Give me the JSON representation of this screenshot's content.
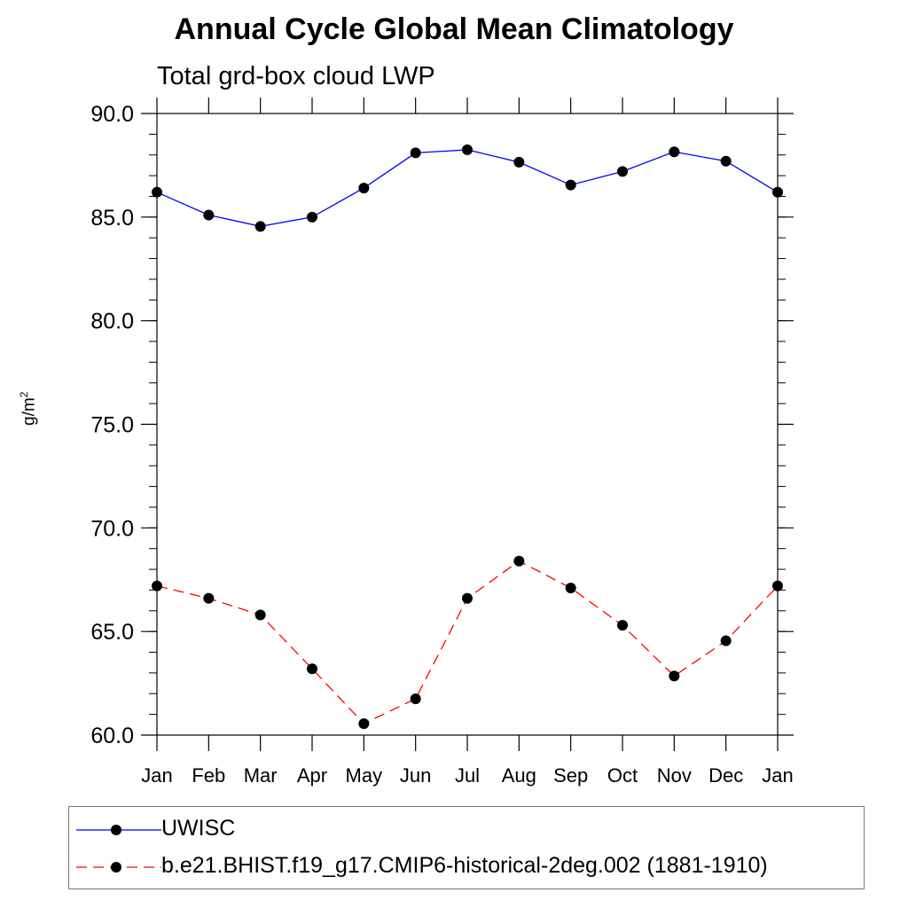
{
  "chart_data": {
    "type": "line",
    "title": "Annual Cycle Global Mean Climatology",
    "subtitle": "Total grd-box cloud LWP",
    "ylabel_base": "g/m",
    "ylabel_sup": "2",
    "categories": [
      "Jan",
      "Feb",
      "Mar",
      "Apr",
      "May",
      "Jun",
      "Jul",
      "Aug",
      "Sep",
      "Oct",
      "Nov",
      "Dec",
      "Jan"
    ],
    "ylim": [
      60.0,
      90.0
    ],
    "yticks": [
      "60.0",
      "65.0",
      "70.0",
      "75.0",
      "80.0",
      "85.0",
      "90.0"
    ],
    "legend_position": "bottom",
    "series": [
      {
        "name": "UWISC",
        "color": "#0000ff",
        "dash": "solid",
        "values": [
          86.2,
          85.1,
          84.55,
          85.0,
          86.4,
          88.1,
          88.25,
          87.65,
          86.55,
          87.2,
          88.15,
          87.7,
          86.2
        ]
      },
      {
        "name": "b.e21.BHIST.f19_g17.CMIP6-historical-2deg.002 (1881-1910)",
        "color": "#ff0000",
        "dash": "dashed",
        "values": [
          67.2,
          66.6,
          65.8,
          63.2,
          60.55,
          61.75,
          66.6,
          68.4,
          67.1,
          65.3,
          62.85,
          64.55,
          67.2
        ]
      }
    ]
  }
}
